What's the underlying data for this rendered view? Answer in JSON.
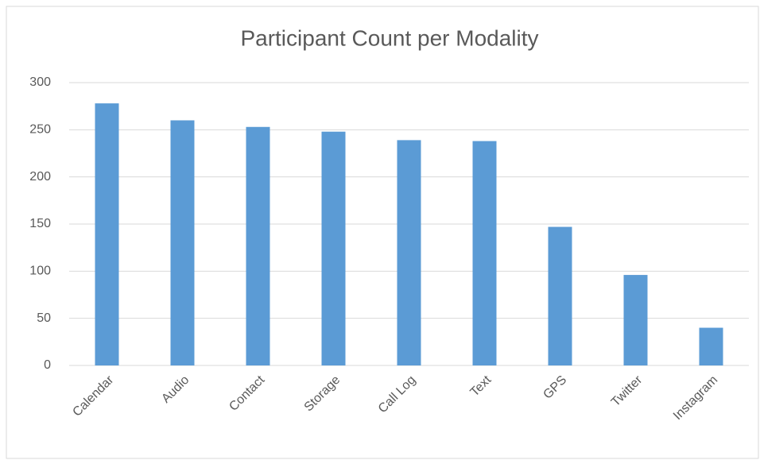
{
  "chart_data": {
    "type": "bar",
    "title": "Participant Count per Modality",
    "categories": [
      "Calendar",
      "Audio",
      "Contact",
      "Storage",
      "Call Log",
      "Text",
      "GPS",
      "Twitter",
      "Instagram"
    ],
    "values": [
      278,
      260,
      253,
      248,
      239,
      238,
      147,
      96,
      40
    ],
    "color": "#5b9bd5",
    "ylim": [
      0,
      300
    ],
    "yticks": [
      0,
      50,
      100,
      150,
      200,
      250,
      300
    ],
    "grid": true
  }
}
